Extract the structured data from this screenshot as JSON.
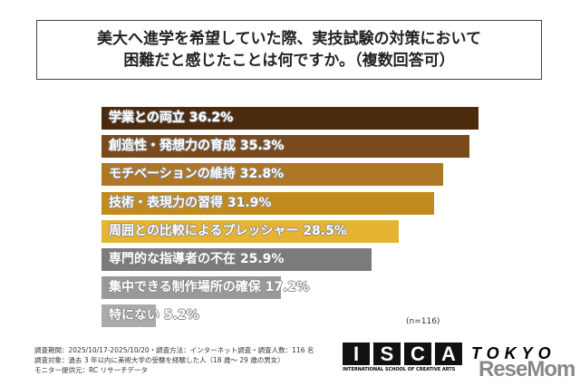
{
  "chart_data": {
    "type": "bar",
    "orientation": "horizontal",
    "title": [
      "美大へ進学を希望していた際、実技試験の対策において",
      "困難だと感じたことは何ですか。（複数回答可）"
    ],
    "categories": [
      "学業との両立",
      "創造性・発想力の育成",
      "モチベーションの維持",
      "技術・表現力の習得",
      "周囲との比較によるプレッシャー",
      "専門的な指導者の不在",
      "集中できる制作場所の確保",
      "特にない"
    ],
    "values": [
      36.2,
      35.3,
      32.8,
      31.9,
      28.5,
      25.9,
      17.2,
      5.2
    ],
    "colors": [
      "#4b2a0d",
      "#7a4a1d",
      "#ad7726",
      "#c38b1f",
      "#e6b332",
      "#7b7b7b",
      "#999999",
      "#aaaaaa"
    ],
    "unit": "%",
    "xlim": [
      0,
      36.2
    ],
    "grid": false,
    "legend": "none",
    "note": "(n=116)"
  },
  "footer": {
    "lines": [
      "調査期間：2025/10/17-2025/10/20・調査方法：インターネット調査・調査人数：116 名",
      "調査対象：過去 3 年以内に美術大学の受験を経験した人（18 歳～ 29 歳の男女）",
      "モニター提供元：RC リサーチデータ"
    ],
    "logo_letters": [
      "I",
      "S",
      "C",
      "A"
    ],
    "logo_city": "TOKYO",
    "logo_sub": "INTERNATIONAL SCHOOL OF CREATIVE ARTS",
    "watermark": "ReseMom"
  }
}
